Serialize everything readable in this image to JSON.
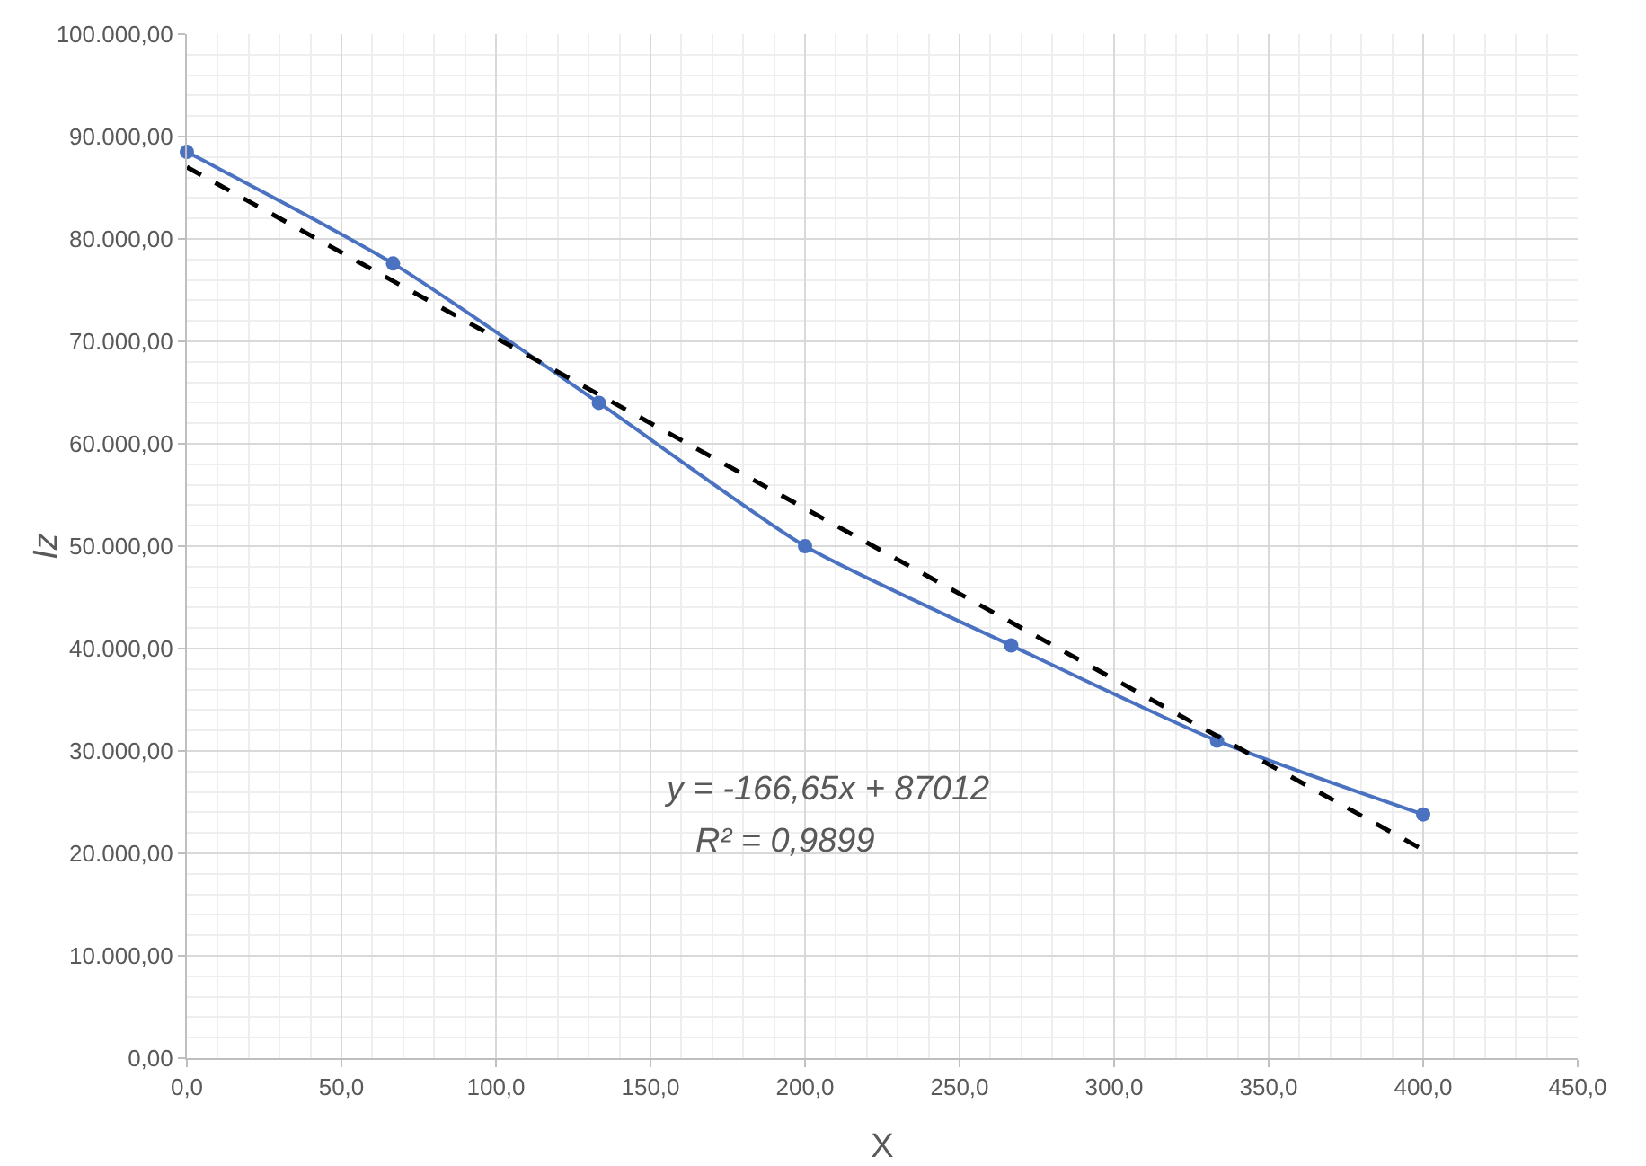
{
  "chart_data": {
    "type": "line",
    "xlabel": "X",
    "ylabel": "Iz",
    "grid": true,
    "xlim": [
      0,
      450
    ],
    "xticks": [
      {
        "value": 0,
        "label": "0,0"
      },
      {
        "value": 50,
        "label": "50,0"
      },
      {
        "value": 100,
        "label": "100,0"
      },
      {
        "value": 150,
        "label": "150,0"
      },
      {
        "value": 200,
        "label": "200,0"
      },
      {
        "value": 250,
        "label": "250,0"
      },
      {
        "value": 300,
        "label": "300,0"
      },
      {
        "value": 350,
        "label": "350,0"
      },
      {
        "value": 400,
        "label": "400,0"
      },
      {
        "value": 450,
        "label": "450,0"
      }
    ],
    "ylim": [
      0,
      100000
    ],
    "yticks": [
      {
        "value": 0,
        "label": "0,00"
      },
      {
        "value": 10000,
        "label": "10.000,00"
      },
      {
        "value": 20000,
        "label": "20.000,00"
      },
      {
        "value": 30000,
        "label": "30.000,00"
      },
      {
        "value": 40000,
        "label": "40.000,00"
      },
      {
        "value": 50000,
        "label": "50.000,00"
      },
      {
        "value": 60000,
        "label": "60.000,00"
      },
      {
        "value": 70000,
        "label": "70.000,00"
      },
      {
        "value": 80000,
        "label": "80.000,00"
      },
      {
        "value": 90000,
        "label": "90.000,00"
      },
      {
        "value": 100000,
        "label": "100.000,00"
      }
    ],
    "x": [
      0,
      66.7,
      133.3,
      200,
      266.7,
      333.3,
      400
    ],
    "series": [
      {
        "color": "#4a72c0",
        "marker": "circle",
        "line_style": "solid",
        "values": [
          88500,
          77600,
          64000,
          50000,
          40300,
          31000,
          23800
        ]
      },
      {
        "type": "line",
        "color": "#000000",
        "marker": "none",
        "line_style": "dashed",
        "x": [
          0,
          400
        ],
        "values": [
          87012,
          20352
        ]
      }
    ],
    "annotations": [
      "y = -166,65x + 87012",
      "R² = 0,9899"
    ]
  }
}
